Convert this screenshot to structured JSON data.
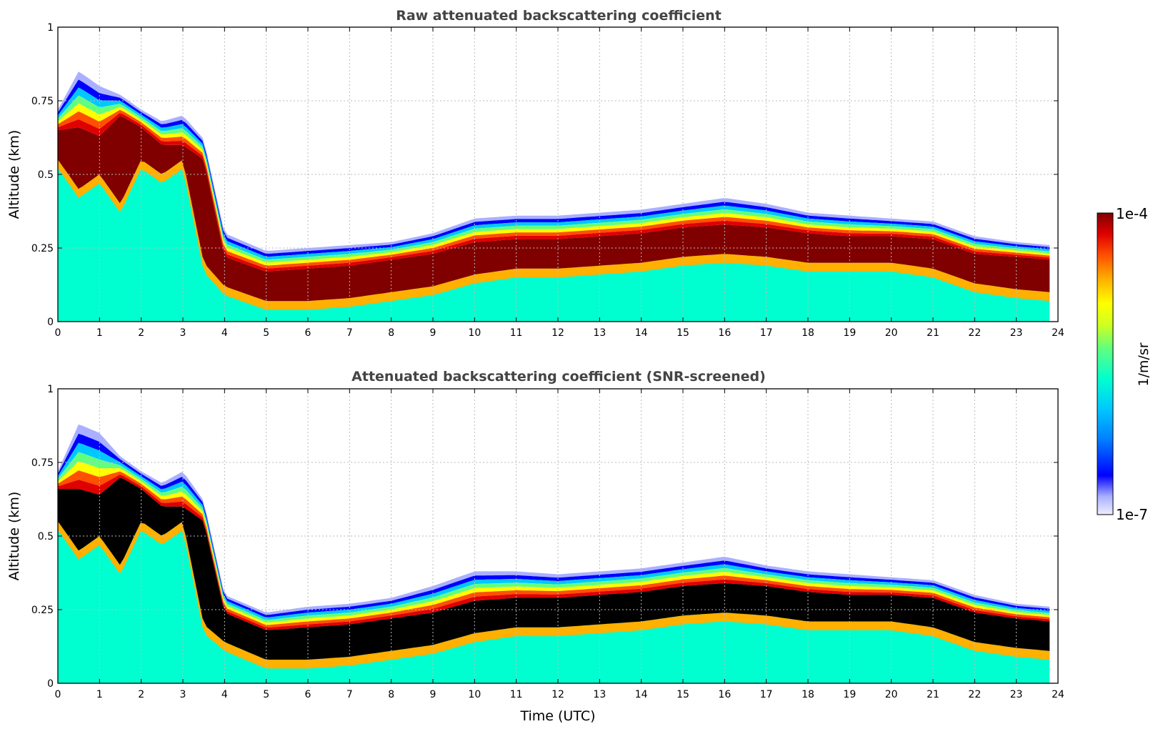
{
  "colors": {
    "colormap": [
      "#eeeeff",
      "#aab0ff",
      "#0000ff",
      "#0080ff",
      "#00c8ff",
      "#00ffd0",
      "#60ff80",
      "#d0ff20",
      "#ffff00",
      "#ffb000",
      "#ff5000",
      "#e00000",
      "#800000"
    ],
    "saturated_raw": "#800000",
    "saturated_screened": "#000000",
    "frame": "#000000",
    "title": "#444444"
  },
  "colorbar": {
    "label": "1/m/sr",
    "max_label": "1e-4",
    "min_label": "1e-7"
  },
  "chart_data": [
    {
      "type": "heatmap",
      "title": "Raw attenuated backscattering coefficient",
      "xlabel": "",
      "ylabel": "Altitude (km)",
      "xlim": [
        0,
        24
      ],
      "ylim": [
        0,
        1
      ],
      "xticks": [
        "0",
        "1",
        "2",
        "3",
        "4",
        "5",
        "6",
        "7",
        "8",
        "9",
        "10",
        "11",
        "12",
        "13",
        "14",
        "15",
        "16",
        "17",
        "18",
        "19",
        "20",
        "21",
        "22",
        "23",
        "24"
      ],
      "yticks": [
        "0",
        "0.25",
        "0.5",
        "0.75",
        "1"
      ],
      "grid": true,
      "color_scale": "log",
      "value_range": [
        "1e-7",
        "1e-4"
      ],
      "data_end_time": 23.8,
      "layer_top_km": {
        "time": [
          0,
          0.5,
          1,
          1.5,
          2,
          2.5,
          3,
          3.5,
          4,
          5,
          6,
          7,
          8,
          9,
          10,
          11,
          12,
          13,
          14,
          15,
          16,
          17,
          18,
          19,
          20,
          21,
          22,
          23,
          23.8
        ],
        "value": [
          0.72,
          0.85,
          0.8,
          0.77,
          0.72,
          0.68,
          0.7,
          0.62,
          0.3,
          0.24,
          0.25,
          0.26,
          0.27,
          0.3,
          0.35,
          0.36,
          0.36,
          0.37,
          0.38,
          0.4,
          0.42,
          0.4,
          0.37,
          0.36,
          0.35,
          0.34,
          0.29,
          0.27,
          0.26
        ]
      },
      "saturated_top_km": {
        "time": [
          0,
          0.5,
          1,
          1.5,
          2,
          2.5,
          3,
          3.5,
          4,
          5,
          6,
          7,
          8,
          9,
          10,
          11,
          12,
          13,
          14,
          15,
          16,
          17,
          18,
          19,
          20,
          21,
          22,
          23,
          23.8
        ],
        "value": [
          0.65,
          0.66,
          0.63,
          0.7,
          0.66,
          0.6,
          0.6,
          0.55,
          0.22,
          0.17,
          0.18,
          0.19,
          0.21,
          0.23,
          0.27,
          0.28,
          0.28,
          0.29,
          0.3,
          0.32,
          0.33,
          0.32,
          0.3,
          0.29,
          0.29,
          0.28,
          0.23,
          0.22,
          0.21
        ]
      },
      "saturated_bottom_km": {
        "time": [
          0,
          0.5,
          1,
          1.5,
          2,
          2.5,
          3,
          3.5,
          4,
          5,
          6,
          7,
          8,
          9,
          10,
          11,
          12,
          13,
          14,
          15,
          16,
          17,
          18,
          19,
          20,
          21,
          22,
          23,
          23.8
        ],
        "value": [
          0.55,
          0.45,
          0.5,
          0.4,
          0.55,
          0.5,
          0.55,
          0.2,
          0.12,
          0.07,
          0.07,
          0.08,
          0.1,
          0.12,
          0.16,
          0.18,
          0.18,
          0.19,
          0.2,
          0.22,
          0.23,
          0.22,
          0.2,
          0.2,
          0.2,
          0.18,
          0.13,
          0.11,
          0.1
        ]
      }
    },
    {
      "type": "heatmap",
      "title": "Attenuated backscattering coefficient (SNR-screened)",
      "xlabel": "Time (UTC)",
      "ylabel": "Altitude (km)",
      "xlim": [
        0,
        24
      ],
      "ylim": [
        0,
        1
      ],
      "xticks": [
        "0",
        "1",
        "2",
        "3",
        "4",
        "5",
        "6",
        "7",
        "8",
        "9",
        "10",
        "11",
        "12",
        "13",
        "14",
        "15",
        "16",
        "17",
        "18",
        "19",
        "20",
        "21",
        "22",
        "23",
        "24"
      ],
      "yticks": [
        "0",
        "0.25",
        "0.5",
        "0.75",
        "1"
      ],
      "grid": true,
      "color_scale": "log",
      "value_range": [
        "1e-7",
        "1e-4"
      ],
      "data_end_time": 23.8,
      "layer_top_km": {
        "time": [
          0,
          0.5,
          1,
          1.5,
          2,
          2.5,
          3,
          3.5,
          4,
          5,
          6,
          7,
          8,
          9,
          10,
          11,
          12,
          13,
          14,
          15,
          16,
          17,
          18,
          19,
          20,
          21,
          22,
          23,
          23.8
        ],
        "value": [
          0.72,
          0.88,
          0.85,
          0.77,
          0.72,
          0.68,
          0.72,
          0.62,
          0.3,
          0.24,
          0.26,
          0.27,
          0.29,
          0.33,
          0.38,
          0.38,
          0.37,
          0.38,
          0.39,
          0.41,
          0.43,
          0.4,
          0.38,
          0.37,
          0.36,
          0.35,
          0.3,
          0.27,
          0.26
        ]
      },
      "saturated_top_km": {
        "time": [
          0,
          0.5,
          1,
          1.5,
          2,
          2.5,
          3,
          3.5,
          4,
          5,
          6,
          7,
          8,
          9,
          10,
          11,
          12,
          13,
          14,
          15,
          16,
          17,
          18,
          19,
          20,
          21,
          22,
          23,
          23.8
        ],
        "value": [
          0.66,
          0.66,
          0.64,
          0.7,
          0.66,
          0.6,
          0.6,
          0.55,
          0.24,
          0.18,
          0.19,
          0.2,
          0.22,
          0.24,
          0.28,
          0.29,
          0.29,
          0.3,
          0.31,
          0.33,
          0.34,
          0.33,
          0.31,
          0.3,
          0.3,
          0.29,
          0.24,
          0.22,
          0.21
        ]
      },
      "saturated_bottom_km": {
        "time": [
          0,
          0.5,
          1,
          1.5,
          2,
          2.5,
          3,
          3.5,
          4,
          5,
          6,
          7,
          8,
          9,
          10,
          11,
          12,
          13,
          14,
          15,
          16,
          17,
          18,
          19,
          20,
          21,
          22,
          23,
          23.8
        ],
        "value": [
          0.55,
          0.45,
          0.5,
          0.4,
          0.55,
          0.5,
          0.55,
          0.2,
          0.14,
          0.08,
          0.08,
          0.09,
          0.11,
          0.13,
          0.17,
          0.19,
          0.19,
          0.2,
          0.21,
          0.23,
          0.24,
          0.23,
          0.21,
          0.21,
          0.21,
          0.19,
          0.14,
          0.12,
          0.11
        ]
      }
    }
  ]
}
